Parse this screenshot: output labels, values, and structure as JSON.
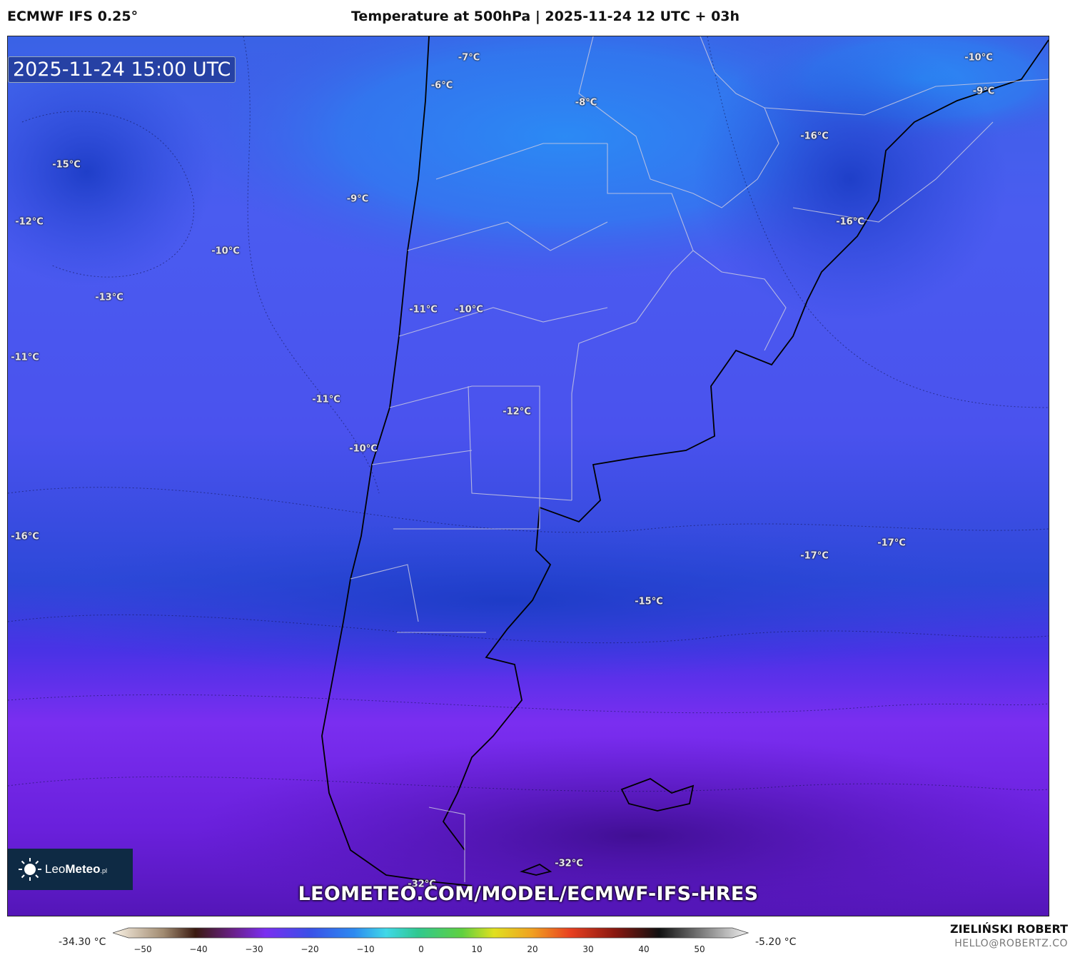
{
  "header": {
    "model": "ECMWF IFS 0.25°",
    "title": "Temperature at 500hPa | 2025-11-24 12 UTC + 03h"
  },
  "map": {
    "timestamp": "2025-11-24 15:00 UTC",
    "url": "LEOMETEO.COM/MODEL/ECMWF-IFS-HRES",
    "logo": {
      "part1": "Leo",
      "part2": "Meteo",
      "suffix": ".pl",
      "icon": "sun-icon"
    },
    "labels": [
      {
        "text": "-7°C"
      },
      {
        "text": "-6°C"
      },
      {
        "text": "-8°C"
      },
      {
        "text": "-10°C"
      },
      {
        "text": "-9°C"
      },
      {
        "text": "-15°C"
      },
      {
        "text": "-9°C"
      },
      {
        "text": "-16°C"
      },
      {
        "text": "-12°C"
      },
      {
        "text": "-10°C"
      },
      {
        "text": "-16°C"
      },
      {
        "text": "-13°C"
      },
      {
        "text": "-11°C"
      },
      {
        "text": "-10°C"
      },
      {
        "text": "-11°C"
      },
      {
        "text": "-11°C"
      },
      {
        "text": "-12°C"
      },
      {
        "text": "-10°C"
      },
      {
        "text": "-16°C"
      },
      {
        "text": "-17°C"
      },
      {
        "text": "-17°C"
      },
      {
        "text": "-15°C"
      },
      {
        "text": "-32°C"
      },
      {
        "text": "-32°C"
      }
    ]
  },
  "colorbar": {
    "min_label": "-34.30 °C",
    "max_label": "-5.20 °C",
    "ticks": [
      "−50",
      "−40",
      "−30",
      "−20",
      "−10",
      "0",
      "10",
      "20",
      "30",
      "40",
      "50"
    ]
  },
  "footer": {
    "author": "ZIELIŃSKI ROBERT",
    "email": "HELLO@ROBERTZ.CO"
  }
}
